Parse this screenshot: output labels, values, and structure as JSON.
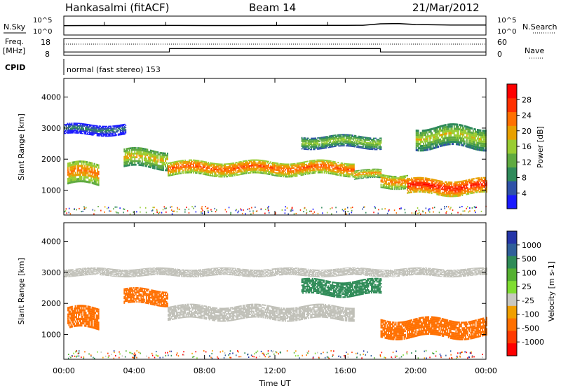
{
  "header": {
    "station": "Hankasalmi (fitACF)",
    "beam": "Beam 14",
    "date": "21/Mar/2012"
  },
  "top_panels": {
    "nsky_label": "N.Sky",
    "nsearch_label": "N.Search",
    "scale_hi": "10^5",
    "scale_lo": "10^0",
    "freq_label": "Freq.",
    "freq_unit": "[MHz]",
    "freq_ticks": [
      "18",
      "8"
    ],
    "nave_label": "Nave",
    "nave_ticks": [
      "60",
      "0"
    ],
    "cpid_label": "CPID",
    "cpid_text": "normal (fast stereo) 153"
  },
  "colors": {
    "power": [
      "#1a1aff",
      "#2f52a8",
      "#2f8a5a",
      "#5faa40",
      "#9acd32",
      "#e8a000",
      "#ff7000",
      "#ff3000",
      "#ff0000"
    ],
    "velocity": [
      "#2535a8",
      "#2f5f9a",
      "#2e8b57",
      "#55b030",
      "#7fdd30",
      "#c8c8c0",
      "#f0a000",
      "#ff7000",
      "#ff3a00",
      "#ff0000"
    ],
    "ground_scatter": "#c0c0b8"
  },
  "chart_data": [
    {
      "type": "heatmap",
      "name": "power",
      "ylabel": "Slant Range [km]",
      "yticks": [
        1000,
        2000,
        3000,
        4000
      ],
      "ylim": [
        200,
        4600
      ],
      "xlim": [
        0,
        24
      ],
      "colorbar": {
        "label": "Power [dB]",
        "range": [
          0,
          32
        ],
        "ticks": [
          "4",
          "8",
          "12",
          "16",
          "20",
          "24",
          "28"
        ]
      },
      "bands": [
        {
          "t0": 0.2,
          "t1": 2.0,
          "center": 1500,
          "width": 700,
          "value": 24
        },
        {
          "t0": 3.4,
          "t1": 5.9,
          "center": 2000,
          "width": 600,
          "value": 20
        },
        {
          "t0": 5.9,
          "t1": 16.5,
          "center": 1700,
          "width": 450,
          "value": 26
        },
        {
          "t0": 16.5,
          "t1": 18.0,
          "center": 1500,
          "width": 300,
          "value": 22
        },
        {
          "t0": 18.0,
          "t1": 19.5,
          "center": 1300,
          "width": 450,
          "value": 24
        },
        {
          "t0": 19.5,
          "t1": 24.0,
          "center": 1100,
          "width": 500,
          "value": 30
        },
        {
          "t0": 13.5,
          "t1": 18.0,
          "center": 2550,
          "width": 400,
          "value": 16
        },
        {
          "t0": 0.0,
          "t1": 3.5,
          "center": 2950,
          "width": 350,
          "value": 8
        },
        {
          "t0": 20.0,
          "t1": 24.0,
          "center": 2700,
          "width": 700,
          "value": 18
        }
      ]
    },
    {
      "type": "heatmap",
      "name": "velocity",
      "ylabel": "Slant Range [km]",
      "xlabel": "Time UT",
      "yticks": [
        1000,
        2000,
        3000,
        4000
      ],
      "ylim": [
        200,
        4600
      ],
      "xlim": [
        0,
        24
      ],
      "xticks": [
        "00:00",
        "04:00",
        "08:00",
        "12:00",
        "16:00",
        "20:00",
        "00:00"
      ],
      "colorbar": {
        "label": "Velocity [m s-1]",
        "ticks": [
          "1000",
          "500",
          "100",
          "25",
          "-25",
          "-100",
          "-500",
          "-1000"
        ]
      },
      "bands": [
        {
          "t0": 0.2,
          "t1": 2.0,
          "center": 1500,
          "width": 700,
          "value": -300
        },
        {
          "t0": 3.4,
          "t1": 5.9,
          "center": 2200,
          "width": 500,
          "value": -200
        },
        {
          "t0": 5.9,
          "t1": 16.5,
          "center": 1700,
          "width": 450,
          "value": 0
        },
        {
          "t0": 13.5,
          "t1": 18.0,
          "center": 2500,
          "width": 500,
          "value": 150
        },
        {
          "t0": 18.0,
          "t1": 24.0,
          "center": 1200,
          "width": 600,
          "value": -150
        },
        {
          "t0": 0.0,
          "t1": 24.0,
          "center": 3000,
          "width": 250,
          "value": 0
        }
      ]
    },
    {
      "type": "line",
      "name": "n-sky",
      "x": [
        0,
        2,
        4,
        6,
        8,
        10,
        12,
        14,
        16,
        17,
        18,
        19,
        20,
        22,
        24
      ],
      "y": [
        300,
        320,
        310,
        330,
        320,
        310,
        330,
        340,
        350,
        380,
        900,
        1100,
        600,
        450,
        420
      ],
      "xlim": [
        0,
        24
      ],
      "ylim": [
        1,
        100000
      ]
    },
    {
      "type": "line",
      "name": "freq",
      "x": [
        0,
        6,
        6,
        18,
        18,
        24
      ],
      "y": [
        10,
        10,
        12,
        12,
        10,
        10
      ],
      "xlim": [
        0,
        24
      ],
      "ylim": [
        8,
        18
      ]
    },
    {
      "type": "line",
      "name": "nave",
      "x": [
        0,
        24
      ],
      "y": [
        40,
        40
      ],
      "xlim": [
        0,
        24
      ],
      "ylim": [
        0,
        60
      ]
    }
  ]
}
